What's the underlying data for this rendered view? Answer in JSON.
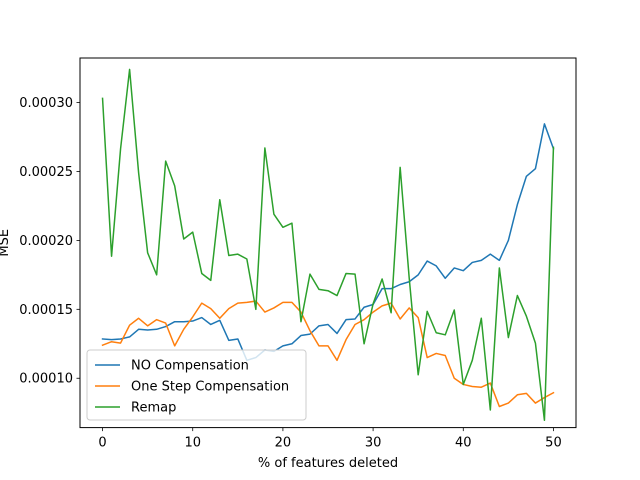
{
  "chart_data": {
    "type": "line",
    "title": "",
    "xlabel": "% of features deleted",
    "ylabel": "MSE",
    "xlim": [
      -2.5,
      52.5
    ],
    "ylim": [
      6.42e-05,
      0.0003323
    ],
    "xticks": [
      0,
      10,
      20,
      30,
      40,
      50
    ],
    "xtick_labels": [
      "0",
      "10",
      "20",
      "30",
      "40",
      "50"
    ],
    "yticks": [
      0.0001,
      0.00015,
      0.0002,
      0.00025,
      0.0003
    ],
    "ytick_labels": [
      "0.00010",
      "0.00015",
      "0.00020",
      "0.00025",
      "0.00030"
    ],
    "grid": false,
    "legend_position": "lower-left",
    "x": [
      0,
      1,
      2,
      3,
      4,
      5,
      6,
      7,
      8,
      9,
      10,
      11,
      12,
      13,
      14,
      15,
      16,
      17,
      18,
      19,
      20,
      21,
      22,
      23,
      24,
      25,
      26,
      27,
      28,
      29,
      30,
      31,
      32,
      33,
      34,
      35,
      36,
      37,
      38,
      39,
      40,
      41,
      42,
      43,
      44,
      45,
      46,
      47,
      48,
      49,
      50
    ],
    "series": [
      {
        "name": "NO Compensation",
        "color": "#1f77b4",
        "values": [
          0.0001285,
          0.000128,
          0.0001285,
          0.00013,
          0.0001355,
          0.000135,
          0.0001355,
          0.0001375,
          0.000141,
          0.000141,
          0.0001415,
          0.000144,
          0.000139,
          0.000142,
          0.0001275,
          0.0001285,
          0.000113,
          0.000115,
          0.0001205,
          0.0001195,
          0.0001235,
          0.000125,
          0.000131,
          0.000132,
          0.000138,
          0.000139,
          0.0001325,
          0.0001425,
          0.000143,
          0.0001515,
          0.0001535,
          0.000165,
          0.000165,
          0.000168,
          0.00017,
          0.000175,
          0.000185,
          0.0001815,
          0.0001725,
          0.00018,
          0.000178,
          0.000184,
          0.0001855,
          0.00019,
          0.0001855,
          0.0002,
          0.000226,
          0.0002465,
          0.000252,
          0.0002845,
          0.0002665
        ]
      },
      {
        "name": "One Step Compensation",
        "color": "#ff7f0e",
        "values": [
          0.000124,
          0.0001265,
          0.0001255,
          0.0001385,
          0.0001435,
          0.000138,
          0.0001425,
          0.00014,
          0.0001235,
          0.0001355,
          0.0001445,
          0.0001545,
          0.0001505,
          0.0001435,
          0.0001505,
          0.0001545,
          0.000155,
          0.000156,
          0.000148,
          0.000151,
          0.000155,
          0.000155,
          0.000148,
          0.0001345,
          0.0001235,
          0.0001235,
          0.000113,
          0.000128,
          0.000139,
          0.0001425,
          0.000148,
          0.0001525,
          0.0001545,
          0.000143,
          0.000151,
          0.000144,
          0.000115,
          0.000118,
          0.0001165,
          0.0001,
          9.55e-05,
          9.4e-05,
          9.35e-05,
          9.65e-05,
          7.95e-05,
          8.2e-05,
          8.8e-05,
          8.9e-05,
          8.2e-05,
          8.6e-05,
          8.95e-05
        ]
      },
      {
        "name": "Remap",
        "color": "#2ca02c",
        "values": [
          0.000303,
          0.0001885,
          0.0002665,
          0.000324,
          0.000249,
          0.000191,
          0.000175,
          0.0002575,
          0.0002395,
          0.000201,
          0.000206,
          0.000176,
          0.000171,
          0.0002295,
          0.000189,
          0.00019,
          0.0001865,
          0.00015,
          0.000267,
          0.000219,
          0.0002095,
          0.0002125,
          0.000141,
          0.0001755,
          0.0001645,
          0.0001635,
          0.00016,
          0.000176,
          0.0001755,
          0.000125,
          0.000154,
          0.000172,
          0.0001475,
          0.000253,
          0.000173,
          0.0001025,
          0.0001485,
          0.000133,
          0.0001315,
          0.0001495,
          9.55e-05,
          0.000113,
          0.0001435,
          7.7e-05,
          0.00018,
          0.0001295,
          0.00016,
          0.000145,
          0.0001255,
          6.95e-05,
          0.0002675
        ]
      }
    ]
  }
}
